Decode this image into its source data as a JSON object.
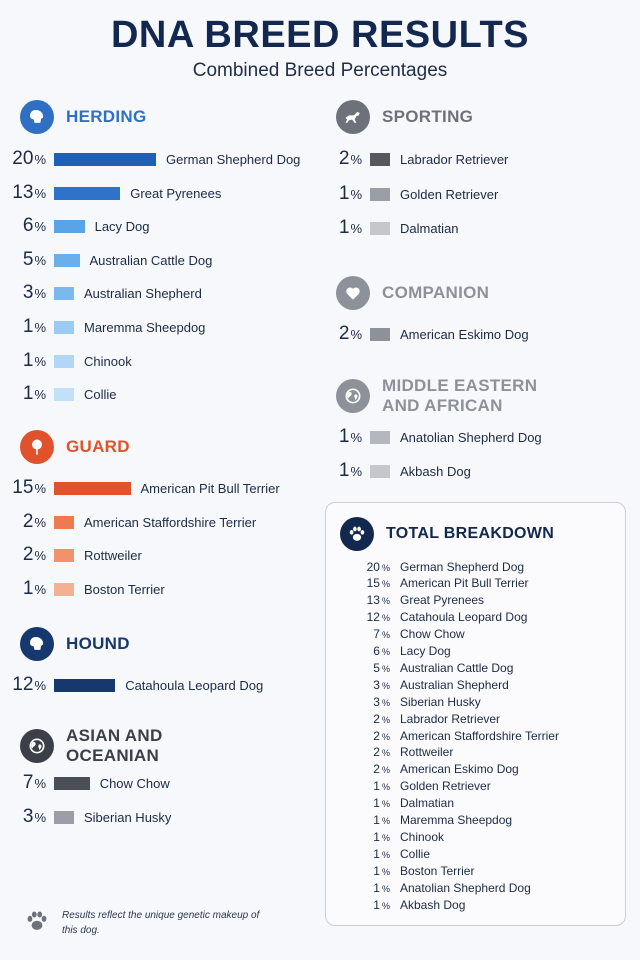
{
  "title": "DNA BREED RESULTS",
  "subtitle": "Combined Breed Percentages",
  "chart_data": {
    "type": "bar",
    "groups": [
      {
        "name": "HERDING",
        "icon": "dog-head-icon",
        "color": "#2f6fc4",
        "breeds": [
          {
            "name": "German Shepherd Dog",
            "value": 20,
            "color": "#1f5fb4"
          },
          {
            "name": "Great Pyrenees",
            "value": 13,
            "color": "#2f72ca"
          },
          {
            "name": "Lacy Dog",
            "value": 6,
            "color": "#5aa3e6"
          },
          {
            "name": "Australian Cattle Dog",
            "value": 5,
            "color": "#6aaeea"
          },
          {
            "name": "Australian Shepherd",
            "value": 3,
            "color": "#7ab8ee"
          },
          {
            "name": "Maremma Sheepdog",
            "value": 1,
            "color": "#9ccbf2"
          },
          {
            "name": "Chinook",
            "value": 1,
            "color": "#b1d7f5"
          },
          {
            "name": "Collie",
            "value": 1,
            "color": "#c2e0f8"
          }
        ]
      },
      {
        "name": "GUARD",
        "icon": "tree-icon",
        "color": "#e0522b",
        "breeds": [
          {
            "name": "American Pit Bull Terrier",
            "value": 15,
            "color": "#e0522b"
          },
          {
            "name": "American Staffordshire Terrier",
            "value": 2,
            "color": "#ef7a52"
          },
          {
            "name": "Rottweiler",
            "value": 2,
            "color": "#f1926d"
          },
          {
            "name": "Boston Terrier",
            "value": 1,
            "color": "#f5b094"
          }
        ]
      },
      {
        "name": "HOUND",
        "icon": "dog-head-icon",
        "color": "#17376f",
        "breeds": [
          {
            "name": "Catahoula Leopard Dog",
            "value": 12,
            "color": "#17376f"
          }
        ]
      },
      {
        "name": "ASIAN AND OCEANIAN",
        "icon": "globe-icon",
        "color": "#3b4048",
        "breeds": [
          {
            "name": "Chow Chow",
            "value": 7,
            "color": "#4b4f57"
          },
          {
            "name": "Siberian Husky",
            "value": 3,
            "color": "#9a9ea6"
          }
        ]
      },
      {
        "name": "SPORTING",
        "icon": "running-dog-icon",
        "color": "#6d7179",
        "breeds": [
          {
            "name": "Labrador Retriever",
            "value": 2,
            "color": "#55595f"
          },
          {
            "name": "Golden Retriever",
            "value": 1,
            "color": "#9a9ea6"
          },
          {
            "name": "Dalmatian",
            "value": 1,
            "color": "#c4c7cc"
          }
        ]
      },
      {
        "name": "COMPANION",
        "icon": "heart-icon",
        "color": "#8d9199",
        "breeds": [
          {
            "name": "American Eskimo Dog",
            "value": 2,
            "color": "#8d9199"
          }
        ]
      },
      {
        "name": "MIDDLE EASTERN AND AFRICAN",
        "icon": "globe-icon",
        "color": "#8d9199",
        "breeds": [
          {
            "name": "Anatolian Shepherd Dog",
            "value": 1,
            "color": "#b4b7bd"
          },
          {
            "name": "Akbash Dog",
            "value": 1,
            "color": "#c4c7cc"
          }
        ]
      }
    ],
    "total_breakdown": {
      "title": "TOTAL BREAKDOWN",
      "icon": "paw-icon",
      "items": [
        {
          "name": "German Shepherd Dog",
          "value": 20
        },
        {
          "name": "American Pit Bull Terrier",
          "value": 15
        },
        {
          "name": "Great Pyrenees",
          "value": 13
        },
        {
          "name": "Catahoula Leopard Dog",
          "value": 12
        },
        {
          "name": "Chow Chow",
          "value": 7
        },
        {
          "name": "Lacy Dog",
          "value": 6
        },
        {
          "name": "Australian Cattle Dog",
          "value": 5
        },
        {
          "name": "Australian Shepherd",
          "value": 3
        },
        {
          "name": "Siberian Husky",
          "value": 3
        },
        {
          "name": "Labrador Retriever",
          "value": 2
        },
        {
          "name": "American Staffordshire Terrier",
          "value": 2
        },
        {
          "name": "Rottweiler",
          "value": 2
        },
        {
          "name": "American Eskimo Dog",
          "value": 2
        },
        {
          "name": "Golden Retriever",
          "value": 1
        },
        {
          "name": "Dalmatian",
          "value": 1
        },
        {
          "name": "Maremma Sheepdog",
          "value": 1
        },
        {
          "name": "Chinook",
          "value": 1
        },
        {
          "name": "Collie",
          "value": 1
        },
        {
          "name": "Boston Terrier",
          "value": 1
        },
        {
          "name": "Anatolian Shepherd Dog",
          "value": 1
        },
        {
          "name": "Akbash Dog",
          "value": 1
        }
      ]
    },
    "unit": "%"
  },
  "footer": {
    "icon": "paw-icon",
    "text": "Results reflect the unique genetic makeup of this dog."
  }
}
